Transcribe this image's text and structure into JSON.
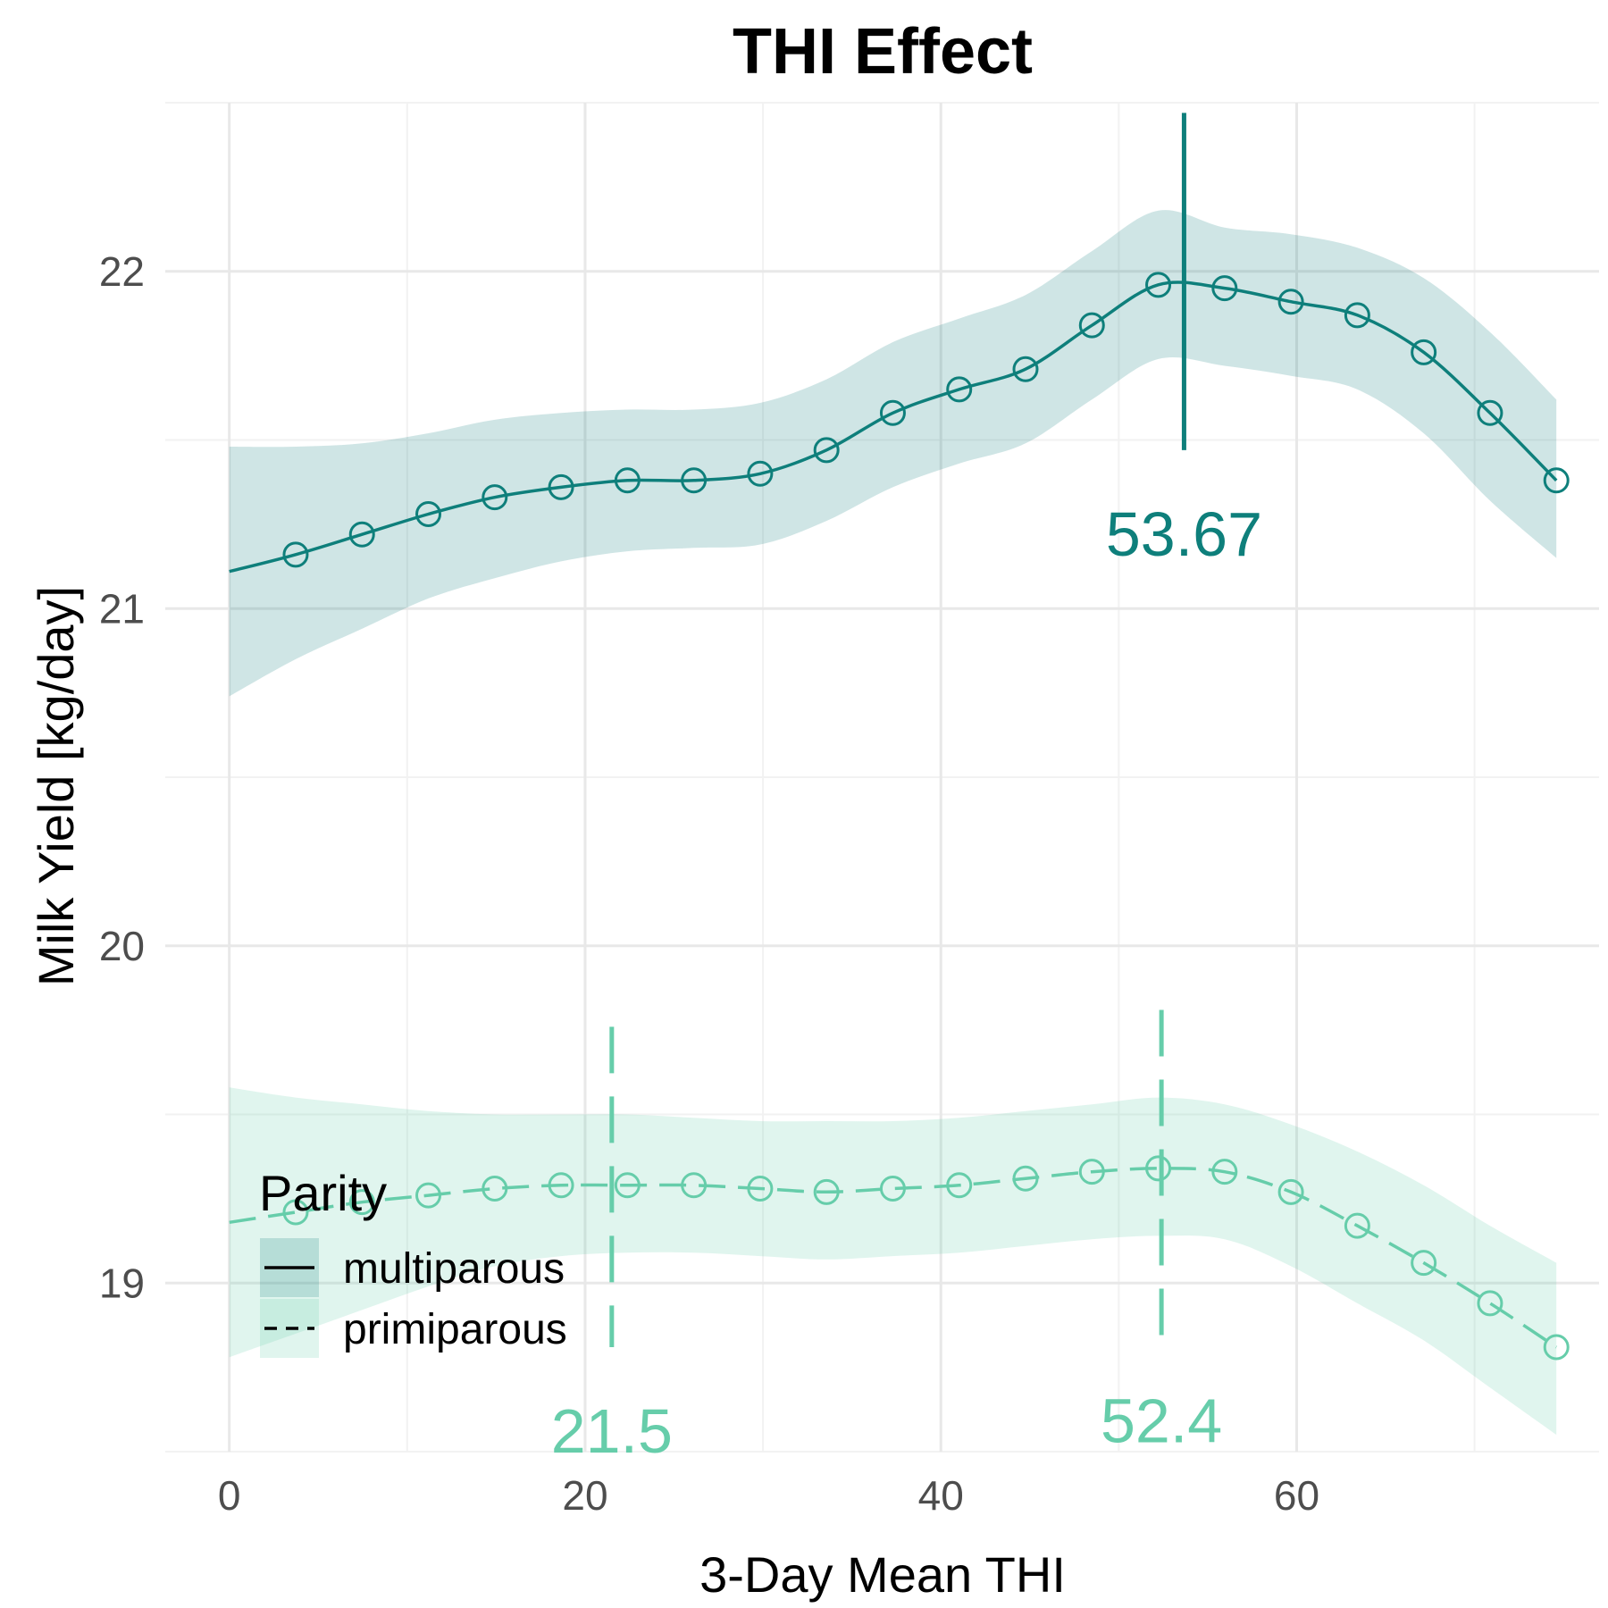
{
  "chart_data": {
    "type": "line",
    "title": "THI Effect",
    "xlabel": "3-Day Mean THI",
    "ylabel": "Milk Yield [kg/day]",
    "xlim": [
      -3.6,
      77
    ],
    "ylim": [
      18.5,
      22.5
    ],
    "x_ticks": [
      0,
      20,
      40,
      60
    ],
    "y_ticks": [
      19,
      20,
      21,
      22
    ],
    "grid": true,
    "legend": {
      "title": "Parity",
      "position": "bottom-left",
      "entries": [
        "multiparous",
        "primiparous"
      ]
    },
    "series": [
      {
        "name": "multiparous",
        "color": "#0E7F7B",
        "line_style": "solid",
        "x": [
          0,
          3.73,
          7.46,
          11.19,
          14.92,
          18.65,
          22.38,
          26.11,
          29.84,
          33.57,
          37.3,
          41.03,
          44.76,
          48.49,
          52.22,
          55.95,
          59.68,
          63.41,
          67.14,
          70.87,
          74.6
        ],
        "y": [
          21.11,
          21.16,
          21.22,
          21.28,
          21.33,
          21.36,
          21.38,
          21.38,
          21.4,
          21.47,
          21.58,
          21.65,
          21.71,
          21.84,
          21.96,
          21.95,
          21.91,
          21.87,
          21.76,
          21.58,
          21.38
        ],
        "lower": [
          20.74,
          20.85,
          20.94,
          21.03,
          21.09,
          21.14,
          21.17,
          21.18,
          21.19,
          21.26,
          21.36,
          21.43,
          21.49,
          21.62,
          21.74,
          21.72,
          21.69,
          21.65,
          21.52,
          21.32,
          21.15
        ],
        "upper": [
          21.48,
          21.48,
          21.49,
          21.52,
          21.56,
          21.58,
          21.59,
          21.59,
          21.61,
          21.68,
          21.79,
          21.86,
          21.93,
          22.06,
          22.18,
          22.13,
          22.11,
          22.07,
          21.98,
          21.82,
          21.62
        ],
        "marker_x": [
          3.73,
          7.46,
          11.19,
          14.92,
          18.65,
          22.38,
          26.11,
          29.84,
          33.57,
          37.3,
          41.03,
          44.76,
          48.49,
          52.22,
          55.95,
          59.68,
          63.41,
          67.14,
          70.87,
          74.6
        ],
        "optimum": {
          "x": 53.67,
          "label": "53.67",
          "line_y": [
            21.47,
            22.47
          ]
        }
      },
      {
        "name": "primiparous",
        "color": "#66CDAA",
        "line_style": "dashed",
        "x": [
          0,
          3.73,
          7.46,
          11.19,
          14.92,
          18.65,
          22.38,
          26.11,
          29.84,
          33.57,
          37.3,
          41.03,
          44.76,
          48.49,
          52.22,
          55.95,
          59.68,
          63.41,
          67.14,
          70.87,
          74.6
        ],
        "y": [
          19.18,
          19.21,
          19.24,
          19.26,
          19.28,
          19.29,
          19.29,
          19.29,
          19.28,
          19.27,
          19.28,
          19.29,
          19.31,
          19.33,
          19.34,
          19.33,
          19.27,
          19.17,
          19.06,
          18.94,
          18.81
        ],
        "lower": [
          18.78,
          18.85,
          18.92,
          18.99,
          19.05,
          19.08,
          19.09,
          19.09,
          19.08,
          19.07,
          19.08,
          19.09,
          19.11,
          19.13,
          19.14,
          19.13,
          19.05,
          18.94,
          18.83,
          18.69,
          18.55
        ],
        "upper": [
          19.58,
          19.55,
          19.53,
          19.51,
          19.5,
          19.5,
          19.5,
          19.49,
          19.48,
          19.48,
          19.48,
          19.49,
          19.51,
          19.53,
          19.55,
          19.53,
          19.47,
          19.39,
          19.29,
          19.17,
          19.06
        ],
        "marker_x": [
          3.73,
          7.46,
          11.19,
          14.92,
          18.65,
          22.38,
          26.11,
          29.84,
          33.57,
          37.3,
          41.03,
          44.76,
          48.49,
          52.22,
          55.95,
          59.68,
          63.41,
          67.14,
          70.87,
          74.6
        ],
        "optimum": [
          {
            "x": 21.5,
            "label": "21.5",
            "line_y": [
              18.81,
              19.76
            ]
          },
          {
            "x": 52.4,
            "label": "52.4",
            "line_y": [
              18.84,
              19.81
            ]
          }
        ]
      }
    ]
  }
}
